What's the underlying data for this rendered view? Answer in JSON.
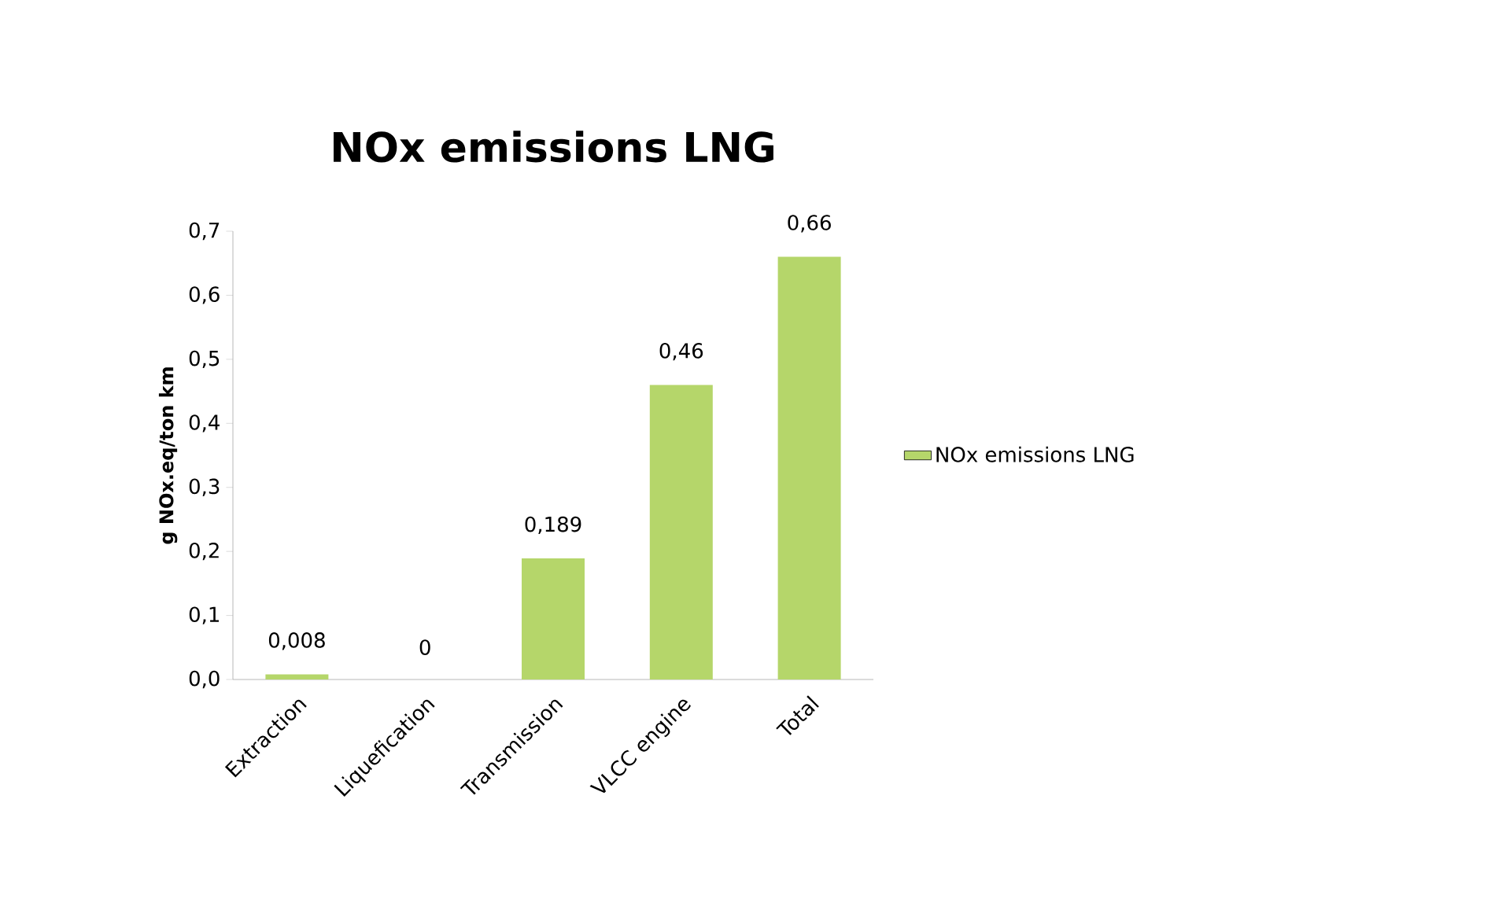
{
  "chart_data": {
    "type": "bar",
    "title": "NOx emissions LNG",
    "ylabel": "g NOx.eq/ton km",
    "categories": [
      "Extraction",
      "Liquefication",
      "Transmission",
      "VLCC engine",
      "Total"
    ],
    "series": [
      {
        "name": "NOx emissions LNG",
        "color": "#b5d66a",
        "values": [
          0.008,
          0,
          0.189,
          0.46,
          0.66
        ],
        "value_labels": [
          "0,008",
          "0",
          "0,189",
          "0,46",
          "0,66"
        ]
      }
    ],
    "ylim": [
      0,
      0.7
    ],
    "yticks": [
      {
        "value": 0,
        "label": "0,0"
      },
      {
        "value": 0.1,
        "label": "0,1"
      },
      {
        "value": 0.2,
        "label": "0,2"
      },
      {
        "value": 0.3,
        "label": "0,3"
      },
      {
        "value": 0.4,
        "label": "0,4"
      },
      {
        "value": 0.5,
        "label": "0,5"
      },
      {
        "value": 0.6,
        "label": "0,6"
      },
      {
        "value": 0.7,
        "label": "0,7"
      }
    ],
    "grid": false,
    "legend": "right"
  }
}
